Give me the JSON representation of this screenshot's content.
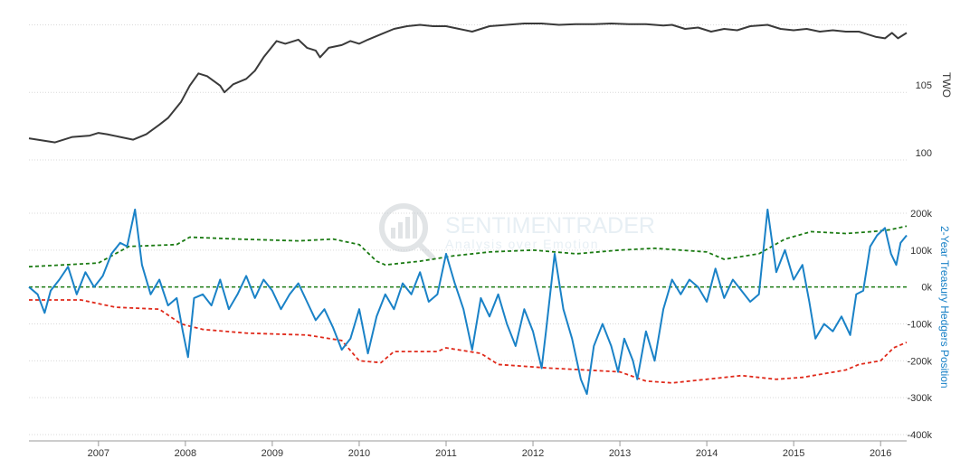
{
  "chart_data": [
    {
      "type": "line",
      "panel": "top",
      "ylabel": "TWO",
      "y_ticks": [
        "105",
        "100"
      ],
      "ylim": [
        100,
        110.5
      ],
      "xlim": [
        2006.2,
        2016.3
      ],
      "grid": true,
      "series": [
        {
          "name": "TWO",
          "color": "#3a3a3a",
          "points": [
            [
              2006.2,
              101.6
            ],
            [
              2006.3,
              101.5
            ],
            [
              2006.5,
              101.3
            ],
            [
              2006.7,
              101.7
            ],
            [
              2006.9,
              101.8
            ],
            [
              2007.0,
              102.0
            ],
            [
              2007.1,
              101.9
            ],
            [
              2007.25,
              101.7
            ],
            [
              2007.4,
              101.5
            ],
            [
              2007.55,
              101.9
            ],
            [
              2007.7,
              102.6
            ],
            [
              2007.8,
              103.1
            ],
            [
              2007.95,
              104.3
            ],
            [
              2008.05,
              105.5
            ],
            [
              2008.15,
              106.4
            ],
            [
              2008.25,
              106.2
            ],
            [
              2008.4,
              105.5
            ],
            [
              2008.45,
              105.0
            ],
            [
              2008.55,
              105.6
            ],
            [
              2008.7,
              106.0
            ],
            [
              2008.8,
              106.6
            ],
            [
              2008.9,
              107.6
            ],
            [
              2009.0,
              108.4
            ],
            [
              2009.05,
              108.8
            ],
            [
              2009.15,
              108.6
            ],
            [
              2009.3,
              108.9
            ],
            [
              2009.4,
              108.3
            ],
            [
              2009.5,
              108.1
            ],
            [
              2009.55,
              107.6
            ],
            [
              2009.65,
              108.3
            ],
            [
              2009.8,
              108.5
            ],
            [
              2009.9,
              108.8
            ],
            [
              2010.0,
              108.6
            ],
            [
              2010.1,
              108.9
            ],
            [
              2010.25,
              109.3
            ],
            [
              2010.4,
              109.7
            ],
            [
              2010.55,
              109.9
            ],
            [
              2010.7,
              110.0
            ],
            [
              2010.85,
              109.9
            ],
            [
              2011.0,
              109.9
            ],
            [
              2011.15,
              109.7
            ],
            [
              2011.3,
              109.5
            ],
            [
              2011.5,
              109.9
            ],
            [
              2011.7,
              110.0
            ],
            [
              2011.9,
              110.1
            ],
            [
              2012.1,
              110.1
            ],
            [
              2012.3,
              110.0
            ],
            [
              2012.5,
              110.05
            ],
            [
              2012.7,
              110.05
            ],
            [
              2012.9,
              110.1
            ],
            [
              2013.1,
              110.05
            ],
            [
              2013.3,
              110.05
            ],
            [
              2013.5,
              109.95
            ],
            [
              2013.6,
              110.0
            ],
            [
              2013.75,
              109.7
            ],
            [
              2013.9,
              109.8
            ],
            [
              2014.05,
              109.5
            ],
            [
              2014.2,
              109.7
            ],
            [
              2014.35,
              109.6
            ],
            [
              2014.5,
              109.9
            ],
            [
              2014.7,
              110.0
            ],
            [
              2014.85,
              109.7
            ],
            [
              2015.0,
              109.6
            ],
            [
              2015.15,
              109.7
            ],
            [
              2015.3,
              109.5
            ],
            [
              2015.45,
              109.6
            ],
            [
              2015.6,
              109.5
            ],
            [
              2015.75,
              109.5
            ],
            [
              2015.85,
              109.3
            ],
            [
              2015.95,
              109.1
            ],
            [
              2016.05,
              109.0
            ],
            [
              2016.13,
              109.4
            ],
            [
              2016.2,
              109.0
            ],
            [
              2016.3,
              109.4
            ]
          ]
        }
      ]
    },
    {
      "type": "line",
      "panel": "bottom",
      "ylabel": "2-Year Treasury Hedgers Position",
      "y_ticks": [
        "200k",
        "100k",
        "0k",
        "-100k",
        "-200k",
        "-300k",
        "-400k"
      ],
      "ylim": [
        -400000,
        200000
      ],
      "xlim": [
        2006.2,
        2016.3
      ],
      "x_ticks": [
        "2007",
        "2008",
        "2009",
        "2010",
        "2011",
        "2012",
        "2013",
        "2014",
        "2015",
        "2016"
      ],
      "grid": true,
      "series": [
        {
          "name": "2-Year Treasury Hedgers Position",
          "color": "#1a82c7",
          "points": [
            [
              2006.2,
              0
            ],
            [
              2006.3,
              -20000
            ],
            [
              2006.38,
              -70000
            ],
            [
              2006.45,
              -10000
            ],
            [
              2006.55,
              20000
            ],
            [
              2006.65,
              55000
            ],
            [
              2006.75,
              -20000
            ],
            [
              2006.85,
              40000
            ],
            [
              2006.95,
              0
            ],
            [
              2007.05,
              30000
            ],
            [
              2007.15,
              90000
            ],
            [
              2007.25,
              120000
            ],
            [
              2007.33,
              110000
            ],
            [
              2007.42,
              210000
            ],
            [
              2007.5,
              60000
            ],
            [
              2007.6,
              -20000
            ],
            [
              2007.7,
              20000
            ],
            [
              2007.8,
              -50000
            ],
            [
              2007.9,
              -30000
            ],
            [
              2007.97,
              -120000
            ],
            [
              2008.03,
              -190000
            ],
            [
              2008.1,
              -30000
            ],
            [
              2008.2,
              -20000
            ],
            [
              2008.3,
              -50000
            ],
            [
              2008.4,
              20000
            ],
            [
              2008.5,
              -60000
            ],
            [
              2008.6,
              -20000
            ],
            [
              2008.7,
              30000
            ],
            [
              2008.8,
              -30000
            ],
            [
              2008.9,
              20000
            ],
            [
              2009.0,
              -10000
            ],
            [
              2009.1,
              -60000
            ],
            [
              2009.2,
              -20000
            ],
            [
              2009.3,
              10000
            ],
            [
              2009.4,
              -40000
            ],
            [
              2009.5,
              -90000
            ],
            [
              2009.6,
              -60000
            ],
            [
              2009.7,
              -110000
            ],
            [
              2009.8,
              -170000
            ],
            [
              2009.9,
              -140000
            ],
            [
              2010.0,
              -60000
            ],
            [
              2010.1,
              -180000
            ],
            [
              2010.2,
              -80000
            ],
            [
              2010.3,
              -20000
            ],
            [
              2010.4,
              -60000
            ],
            [
              2010.5,
              10000
            ],
            [
              2010.6,
              -20000
            ],
            [
              2010.7,
              40000
            ],
            [
              2010.8,
              -40000
            ],
            [
              2010.9,
              -20000
            ],
            [
              2011.0,
              90000
            ],
            [
              2011.1,
              10000
            ],
            [
              2011.2,
              -60000
            ],
            [
              2011.3,
              -170000
            ],
            [
              2011.4,
              -30000
            ],
            [
              2011.5,
              -80000
            ],
            [
              2011.6,
              -20000
            ],
            [
              2011.7,
              -100000
            ],
            [
              2011.8,
              -160000
            ],
            [
              2011.9,
              -60000
            ],
            [
              2012.0,
              -120000
            ],
            [
              2012.1,
              -220000
            ],
            [
              2012.15,
              -120000
            ],
            [
              2012.25,
              90000
            ],
            [
              2012.35,
              -60000
            ],
            [
              2012.45,
              -140000
            ],
            [
              2012.55,
              -250000
            ],
            [
              2012.62,
              -290000
            ],
            [
              2012.7,
              -160000
            ],
            [
              2012.8,
              -100000
            ],
            [
              2012.9,
              -160000
            ],
            [
              2012.98,
              -230000
            ],
            [
              2013.05,
              -140000
            ],
            [
              2013.15,
              -200000
            ],
            [
              2013.2,
              -250000
            ],
            [
              2013.3,
              -120000
            ],
            [
              2013.4,
              -200000
            ],
            [
              2013.5,
              -60000
            ],
            [
              2013.6,
              20000
            ],
            [
              2013.7,
              -20000
            ],
            [
              2013.8,
              20000
            ],
            [
              2013.9,
              0
            ],
            [
              2014.0,
              -40000
            ],
            [
              2014.1,
              50000
            ],
            [
              2014.2,
              -30000
            ],
            [
              2014.3,
              20000
            ],
            [
              2014.4,
              -10000
            ],
            [
              2014.5,
              -40000
            ],
            [
              2014.6,
              -20000
            ],
            [
              2014.7,
              210000
            ],
            [
              2014.8,
              40000
            ],
            [
              2014.9,
              100000
            ],
            [
              2015.0,
              20000
            ],
            [
              2015.1,
              60000
            ],
            [
              2015.18,
              -40000
            ],
            [
              2015.25,
              -140000
            ],
            [
              2015.35,
              -100000
            ],
            [
              2015.45,
              -120000
            ],
            [
              2015.55,
              -80000
            ],
            [
              2015.65,
              -130000
            ],
            [
              2015.72,
              -20000
            ],
            [
              2015.8,
              -10000
            ],
            [
              2015.88,
              110000
            ],
            [
              2015.96,
              140000
            ],
            [
              2016.05,
              160000
            ],
            [
              2016.12,
              90000
            ],
            [
              2016.18,
              60000
            ],
            [
              2016.23,
              120000
            ],
            [
              2016.3,
              140000
            ]
          ]
        },
        {
          "name": "Upper extreme",
          "color": "#1a7a12",
          "dashed": true,
          "points": [
            [
              2006.2,
              55000
            ],
            [
              2006.6,
              60000
            ],
            [
              2007.0,
              65000
            ],
            [
              2007.35,
              110000
            ],
            [
              2007.9,
              115000
            ],
            [
              2008.05,
              135000
            ],
            [
              2008.6,
              130000
            ],
            [
              2009.3,
              125000
            ],
            [
              2009.7,
              130000
            ],
            [
              2010.0,
              115000
            ],
            [
              2010.2,
              70000
            ],
            [
              2010.3,
              60000
            ],
            [
              2010.7,
              70000
            ],
            [
              2011.1,
              85000
            ],
            [
              2011.5,
              95000
            ],
            [
              2012.0,
              100000
            ],
            [
              2012.5,
              90000
            ],
            [
              2013.0,
              100000
            ],
            [
              2013.4,
              105000
            ],
            [
              2014.0,
              95000
            ],
            [
              2014.2,
              75000
            ],
            [
              2014.6,
              90000
            ],
            [
              2014.9,
              130000
            ],
            [
              2015.2,
              150000
            ],
            [
              2015.6,
              145000
            ],
            [
              2015.9,
              150000
            ],
            [
              2016.1,
              155000
            ],
            [
              2016.3,
              165000
            ]
          ]
        },
        {
          "name": "Lower extreme",
          "color": "#e02a1b",
          "dashed": true,
          "points": [
            [
              2006.2,
              -35000
            ],
            [
              2006.8,
              -35000
            ],
            [
              2007.2,
              -55000
            ],
            [
              2007.7,
              -60000
            ],
            [
              2007.95,
              -100000
            ],
            [
              2008.2,
              -115000
            ],
            [
              2008.7,
              -125000
            ],
            [
              2009.4,
              -130000
            ],
            [
              2009.8,
              -145000
            ],
            [
              2010.0,
              -200000
            ],
            [
              2010.25,
              -205000
            ],
            [
              2010.4,
              -175000
            ],
            [
              2010.9,
              -175000
            ],
            [
              2011.0,
              -165000
            ],
            [
              2011.4,
              -180000
            ],
            [
              2011.6,
              -210000
            ],
            [
              2012.2,
              -220000
            ],
            [
              2012.6,
              -225000
            ],
            [
              2013.0,
              -230000
            ],
            [
              2013.3,
              -255000
            ],
            [
              2013.6,
              -260000
            ],
            [
              2014.0,
              -250000
            ],
            [
              2014.4,
              -240000
            ],
            [
              2014.8,
              -250000
            ],
            [
              2015.1,
              -245000
            ],
            [
              2015.35,
              -235000
            ],
            [
              2015.6,
              -225000
            ],
            [
              2015.75,
              -210000
            ],
            [
              2016.0,
              -200000
            ],
            [
              2016.15,
              -165000
            ],
            [
              2016.3,
              -150000
            ]
          ]
        }
      ]
    }
  ],
  "reference_line": {
    "value": 0,
    "color": "#1a7a12"
  },
  "watermark": {
    "title": "SENTIMENTRADER",
    "tagline": "Analysis over Emotion"
  }
}
